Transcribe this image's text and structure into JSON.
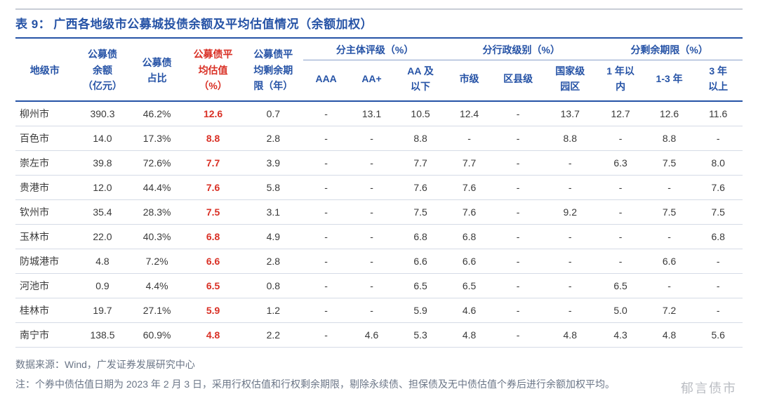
{
  "title_prefix": "表 9：",
  "title_text": "广西各地级市公募城投债余额及平均估值情况（余额加权）",
  "styling": {
    "accent_color": "#2653a6",
    "title_fontsize": 17,
    "body_fontsize": 14,
    "highlight_color": "#d93025",
    "row_border_color": "#d5dbe6",
    "head_border_color": "#2653a6",
    "source_color": "#6b7687",
    "watermark_color": "#b9bcc2",
    "background_color": "#ffffff"
  },
  "header": {
    "city": "地级市",
    "amount": "公募债余额（亿元）",
    "pct": "公募债占比",
    "avg_val": "公募债平均估值（%）",
    "avg_term": "公募债平均剩余期限（年）",
    "grp_rating": "分主体评级（%）",
    "grp_admin": "分行政级别（%）",
    "grp_term": "分剩余期限（%）",
    "aaa": "AAA",
    "aa_plus": "AA+",
    "aa_below": "AA 及以下",
    "city_lvl": "市级",
    "county_lvl": "区县级",
    "park_lvl": "国家级园区",
    "t1": "1 年以内",
    "t2": "1-3 年",
    "t3": "3 年以上"
  },
  "rows": [
    {
      "city": "柳州市",
      "amount": "390.3",
      "pct": "46.2%",
      "avg_val": "12.6",
      "avg_term": "0.7",
      "aaa": "-",
      "aa_plus": "13.1",
      "aa_below": "10.5",
      "city_lvl": "12.4",
      "county_lvl": "-",
      "park_lvl": "13.7",
      "t1": "12.7",
      "t2": "12.6",
      "t3": "11.6"
    },
    {
      "city": "百色市",
      "amount": "14.0",
      "pct": "17.3%",
      "avg_val": "8.8",
      "avg_term": "2.8",
      "aaa": "-",
      "aa_plus": "-",
      "aa_below": "8.8",
      "city_lvl": "-",
      "county_lvl": "-",
      "park_lvl": "8.8",
      "t1": "-",
      "t2": "8.8",
      "t3": "-"
    },
    {
      "city": "崇左市",
      "amount": "39.8",
      "pct": "72.6%",
      "avg_val": "7.7",
      "avg_term": "3.9",
      "aaa": "-",
      "aa_plus": "-",
      "aa_below": "7.7",
      "city_lvl": "7.7",
      "county_lvl": "-",
      "park_lvl": "-",
      "t1": "6.3",
      "t2": "7.5",
      "t3": "8.0"
    },
    {
      "city": "贵港市",
      "amount": "12.0",
      "pct": "44.4%",
      "avg_val": "7.6",
      "avg_term": "5.8",
      "aaa": "-",
      "aa_plus": "-",
      "aa_below": "7.6",
      "city_lvl": "7.6",
      "county_lvl": "-",
      "park_lvl": "-",
      "t1": "-",
      "t2": "-",
      "t3": "7.6"
    },
    {
      "city": "钦州市",
      "amount": "35.4",
      "pct": "28.3%",
      "avg_val": "7.5",
      "avg_term": "3.1",
      "aaa": "-",
      "aa_plus": "-",
      "aa_below": "7.5",
      "city_lvl": "7.6",
      "county_lvl": "-",
      "park_lvl": "9.2",
      "t1": "-",
      "t2": "7.5",
      "t3": "7.5"
    },
    {
      "city": "玉林市",
      "amount": "22.0",
      "pct": "40.3%",
      "avg_val": "6.8",
      "avg_term": "4.9",
      "aaa": "-",
      "aa_plus": "-",
      "aa_below": "6.8",
      "city_lvl": "6.8",
      "county_lvl": "-",
      "park_lvl": "-",
      "t1": "-",
      "t2": "-",
      "t3": "6.8"
    },
    {
      "city": "防城港市",
      "amount": "4.8",
      "pct": "7.2%",
      "avg_val": "6.6",
      "avg_term": "2.8",
      "aaa": "-",
      "aa_plus": "-",
      "aa_below": "6.6",
      "city_lvl": "6.6",
      "county_lvl": "-",
      "park_lvl": "-",
      "t1": "-",
      "t2": "6.6",
      "t3": "-"
    },
    {
      "city": "河池市",
      "amount": "0.9",
      "pct": "4.4%",
      "avg_val": "6.5",
      "avg_term": "0.8",
      "aaa": "-",
      "aa_plus": "-",
      "aa_below": "6.5",
      "city_lvl": "6.5",
      "county_lvl": "-",
      "park_lvl": "-",
      "t1": "6.5",
      "t2": "-",
      "t3": "-"
    },
    {
      "city": "桂林市",
      "amount": "19.7",
      "pct": "27.1%",
      "avg_val": "5.9",
      "avg_term": "1.2",
      "aaa": "-",
      "aa_plus": "-",
      "aa_below": "5.9",
      "city_lvl": "4.6",
      "county_lvl": "-",
      "park_lvl": "-",
      "t1": "5.0",
      "t2": "7.2",
      "t3": "-"
    },
    {
      "city": "南宁市",
      "amount": "138.5",
      "pct": "60.9%",
      "avg_val": "4.8",
      "avg_term": "2.2",
      "aaa": "-",
      "aa_plus": "4.6",
      "aa_below": "5.3",
      "city_lvl": "4.8",
      "county_lvl": "-",
      "park_lvl": "4.8",
      "t1": "4.3",
      "t2": "4.8",
      "t3": "5.6"
    }
  ],
  "source_label": "数据来源：",
  "source_text": "Wind，广发证券发展研究中心",
  "note_label": "注：",
  "note_text": "个券中债估值日期为 2023 年 2 月 3 日，采用行权估值和行权剩余期限，剔除永续债、担保债及无中债估值个券后进行余额加权平均。",
  "watermark": "郁言债市"
}
